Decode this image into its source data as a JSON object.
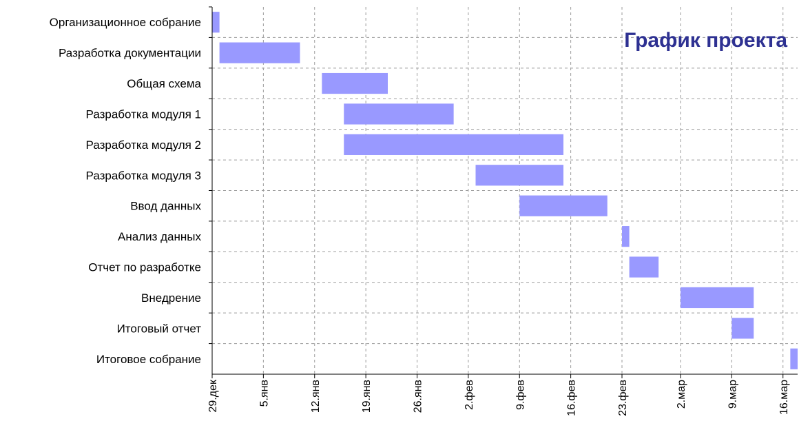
{
  "chart_data": {
    "type": "bar",
    "orientation": "horizontal",
    "subtype": "gantt",
    "title": "График проекта",
    "xlabel": "",
    "ylabel": "",
    "grid": true,
    "legend": "none",
    "bar_color": "#9999ff",
    "title_color": "#2e3192",
    "x_range": [
      "29.12",
      "18.03"
    ],
    "x_ticks": [
      {
        "date": "29.12",
        "label": "29.дек"
      },
      {
        "date": "05.01",
        "label": "5.янв"
      },
      {
        "date": "12.01",
        "label": "12.янв"
      },
      {
        "date": "19.01",
        "label": "19.янв"
      },
      {
        "date": "26.01",
        "label": "26.янв"
      },
      {
        "date": "02.02",
        "label": "2.фев"
      },
      {
        "date": "09.02",
        "label": "9.фев"
      },
      {
        "date": "16.02",
        "label": "16.фев"
      },
      {
        "date": "23.02",
        "label": "23.фев"
      },
      {
        "date": "02.03",
        "label": "2.мар"
      },
      {
        "date": "09.03",
        "label": "9.мар"
      },
      {
        "date": "16.03",
        "label": "16.мар"
      }
    ],
    "tasks": [
      {
        "name": "Организационное собрание",
        "start": "29.12",
        "end": "30.12"
      },
      {
        "name": "Разработка документации",
        "start": "30.12",
        "end": "10.01"
      },
      {
        "name": "Общая схема",
        "start": "13.01",
        "end": "22.01"
      },
      {
        "name": "Разработка модуля 1",
        "start": "16.01",
        "end": "31.01"
      },
      {
        "name": "Разработка модуля 2",
        "start": "16.01",
        "end": "15.02"
      },
      {
        "name": "Разработка модуля 3",
        "start": "03.02",
        "end": "15.02"
      },
      {
        "name": "Ввод данных",
        "start": "09.02",
        "end": "21.02"
      },
      {
        "name": "Анализ данных",
        "start": "23.02",
        "end": "24.02"
      },
      {
        "name": "Отчет по разработке",
        "start": "24.02",
        "end": "28.02"
      },
      {
        "name": "Внедрение",
        "start": "02.03",
        "end": "12.03"
      },
      {
        "name": "Итоговый отчет",
        "start": "09.03",
        "end": "12.03"
      },
      {
        "name": "Итоговое собрание",
        "start": "17.03",
        "end": "18.03"
      }
    ]
  }
}
